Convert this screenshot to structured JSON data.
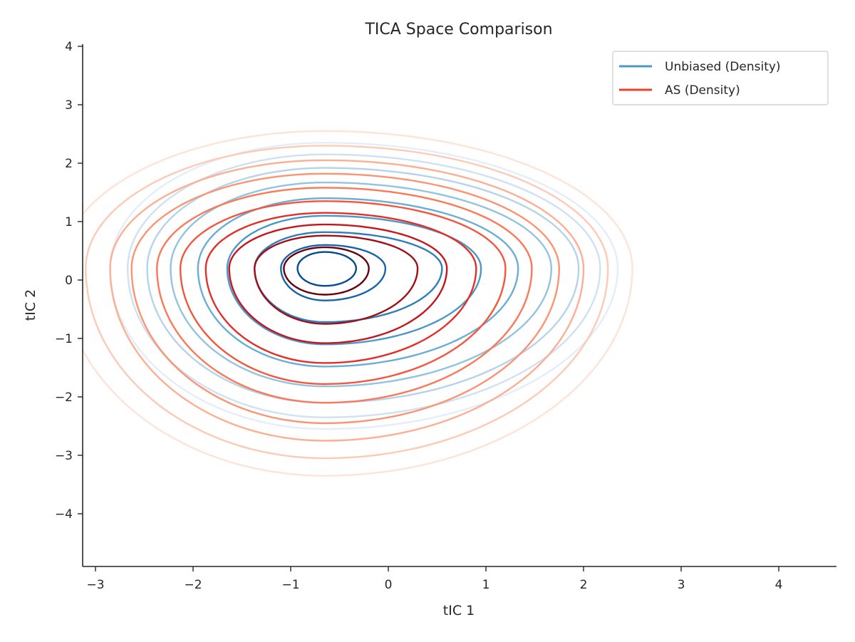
{
  "chart_data": {
    "type": "contour",
    "title": "TICA Space Comparison",
    "xlabel": "tIC 1",
    "ylabel": "tIC 2",
    "xlim": [
      -3.15,
      4.6
    ],
    "ylim": [
      -4.9,
      4.1
    ],
    "xticks": [
      -3,
      -2,
      -1,
      0,
      1,
      2,
      3,
      4
    ],
    "yticks": [
      -4,
      -3,
      -2,
      -1,
      0,
      1,
      2,
      3,
      4
    ],
    "xtick_labels": [
      "−3",
      "−2",
      "−1",
      "0",
      "1",
      "2",
      "3",
      "4"
    ],
    "ytick_labels": [
      "−4",
      "−3",
      "−2",
      "−1",
      "0",
      "1",
      "2",
      "3",
      "4"
    ],
    "grid": false,
    "legend_position": "top-right",
    "peak": [
      -0.65,
      0.2
    ],
    "series": [
      {
        "name": "Unbiased (Density)",
        "legend_color": "#4a98c9",
        "colors": [
          "#e3eef9",
          "#cfe1f2",
          "#b5d4e9",
          "#93c4de",
          "#6aaed6",
          "#4a98c9",
          "#2e7ebc",
          "#1764ab",
          "#084a91"
        ],
        "levels": [
          {
            "right": 3.0,
            "left": 2.2,
            "up": 2.15,
            "down": 2.75
          },
          {
            "right": 2.82,
            "left": 2.02,
            "up": 1.95,
            "down": 2.55
          },
          {
            "right": 2.6,
            "left": 1.82,
            "up": 1.72,
            "down": 2.3
          },
          {
            "right": 2.32,
            "left": 1.58,
            "up": 1.47,
            "down": 2.02
          },
          {
            "right": 1.98,
            "left": 1.3,
            "up": 1.2,
            "down": 1.68
          },
          {
            "right": 1.6,
            "left": 1.0,
            "up": 0.9,
            "down": 1.3
          },
          {
            "right": 1.2,
            "left": 0.72,
            "up": 0.62,
            "down": 0.92
          },
          {
            "right": 0.62,
            "left": 0.45,
            "up": 0.4,
            "down": 0.55
          },
          {
            "right": 0.32,
            "left": 0.28,
            "up": 0.28,
            "down": 0.3
          }
        ]
      },
      {
        "name": "AS (Density)",
        "legend_color": "#e8412d",
        "colors": [
          "#fee3d7",
          "#fdcab5",
          "#fcaf93",
          "#fc9474",
          "#fb7858",
          "#f5553c",
          "#e23028",
          "#c4161c",
          "#a00f15",
          "#67000d"
        ],
        "levels": [
          {
            "right": 3.15,
            "left": 2.7,
            "up": 2.35,
            "down": 3.55
          },
          {
            "right": 2.9,
            "left": 2.45,
            "up": 2.1,
            "down": 3.25
          },
          {
            "right": 2.65,
            "left": 2.2,
            "up": 1.85,
            "down": 2.95
          },
          {
            "right": 2.4,
            "left": 1.98,
            "up": 1.62,
            "down": 2.65
          },
          {
            "right": 2.12,
            "left": 1.72,
            "up": 1.38,
            "down": 2.3
          },
          {
            "right": 1.85,
            "left": 1.48,
            "up": 1.15,
            "down": 1.98
          },
          {
            "right": 1.55,
            "left": 1.22,
            "up": 0.95,
            "down": 1.62
          },
          {
            "right": 1.25,
            "left": 0.98,
            "up": 0.75,
            "down": 1.28
          },
          {
            "right": 0.95,
            "left": 0.72,
            "up": 0.56,
            "down": 0.95
          },
          {
            "right": 0.45,
            "left": 0.42,
            "up": 0.36,
            "down": 0.45
          }
        ]
      }
    ]
  }
}
